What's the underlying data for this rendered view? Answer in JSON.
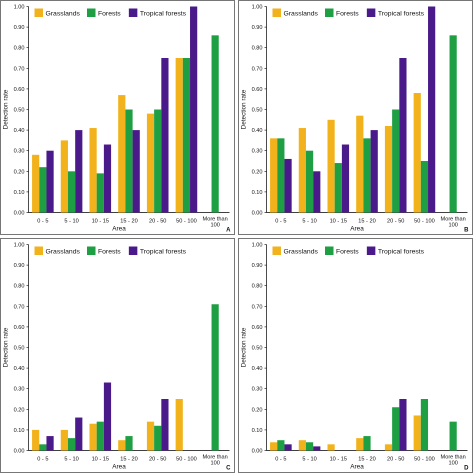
{
  "figure": {
    "colors": {
      "Grasslands": "#f2b21c",
      "Forests": "#1e9f44",
      "Tropical forests": "#4b1a8a"
    }
  },
  "chart_data": [
    {
      "type": "bar",
      "panel_label": "A",
      "categories": [
        "0 - 5",
        "5 - 10",
        "10 - 15",
        "15 - 20",
        "20 - 50",
        "50 - 100",
        "More than 100"
      ],
      "series": [
        {
          "name": "Grasslands",
          "values": [
            0.28,
            0.35,
            0.41,
            0.57,
            0.48,
            0.75,
            null
          ]
        },
        {
          "name": "Forests",
          "values": [
            0.22,
            0.2,
            0.19,
            0.5,
            0.5,
            0.75,
            0.86
          ]
        },
        {
          "name": "Tropical forests",
          "values": [
            0.3,
            0.4,
            0.33,
            0.4,
            0.75,
            1.0,
            null
          ]
        }
      ],
      "xlabel": "Area",
      "ylabel": "Detection rate",
      "ylim": [
        0,
        1
      ],
      "yticks": [
        "0.00",
        "0.10",
        "0.20",
        "0.30",
        "0.40",
        "0.50",
        "0.60",
        "0.70",
        "0.80",
        "0.90",
        "1.00"
      ],
      "legend": "top-left",
      "grid": false
    },
    {
      "type": "bar",
      "panel_label": "B",
      "categories": [
        "0 - 5",
        "5 - 10",
        "10 - 15",
        "15 - 20",
        "20 - 50",
        "50 - 100",
        "More than 100"
      ],
      "series": [
        {
          "name": "Grasslands",
          "values": [
            0.36,
            0.41,
            0.45,
            0.47,
            0.42,
            0.58,
            null
          ]
        },
        {
          "name": "Forests",
          "values": [
            0.36,
            0.3,
            0.24,
            0.36,
            0.5,
            0.25,
            0.86
          ]
        },
        {
          "name": "Tropical forests",
          "values": [
            0.26,
            0.2,
            0.33,
            0.4,
            0.75,
            1.0,
            null
          ]
        }
      ],
      "xlabel": "Area",
      "ylabel": "Detection rate",
      "ylim": [
        0,
        1
      ],
      "yticks": [
        "0.00",
        "0.10",
        "0.20",
        "0.30",
        "0.40",
        "0.50",
        "0.60",
        "0.70",
        "0.80",
        "0.90",
        "1.00"
      ],
      "legend": "top-left",
      "grid": false
    },
    {
      "type": "bar",
      "panel_label": "C",
      "categories": [
        "0 - 5",
        "5 - 10",
        "10 - 15",
        "15 - 20",
        "20 - 50",
        "50 - 100",
        "More than 100"
      ],
      "series": [
        {
          "name": "Grasslands",
          "values": [
            0.1,
            0.1,
            0.13,
            0.05,
            0.14,
            0.25,
            null
          ]
        },
        {
          "name": "Forests",
          "values": [
            0.03,
            0.06,
            0.14,
            0.07,
            0.12,
            null,
            0.71
          ]
        },
        {
          "name": "Tropical forests",
          "values": [
            0.07,
            0.16,
            0.33,
            null,
            0.25,
            null,
            null
          ]
        }
      ],
      "xlabel": "Area",
      "ylabel": "Detection rate",
      "ylim": [
        0,
        1
      ],
      "yticks": [
        "0.00",
        "0.10",
        "0.20",
        "0.30",
        "0.40",
        "0.50",
        "0.60",
        "0.70",
        "0.80",
        "0.90",
        "1.00"
      ],
      "legend": "top-left",
      "grid": false
    },
    {
      "type": "bar",
      "panel_label": "D",
      "categories": [
        "0 - 5",
        "5 - 10",
        "10 - 15",
        "15 - 20",
        "20 - 50",
        "50 - 100",
        "More than 100"
      ],
      "series": [
        {
          "name": "Grasslands",
          "values": [
            0.04,
            0.05,
            0.03,
            0.06,
            0.03,
            0.17,
            null
          ]
        },
        {
          "name": "Forests",
          "values": [
            0.05,
            0.04,
            null,
            0.07,
            0.21,
            0.25,
            0.14
          ]
        },
        {
          "name": "Tropical forests",
          "values": [
            0.03,
            0.02,
            null,
            null,
            0.25,
            null,
            null
          ]
        }
      ],
      "xlabel": "Area",
      "ylabel": "Detection rate",
      "ylim": [
        0,
        1
      ],
      "yticks": [
        "0.00",
        "0.10",
        "0.20",
        "0.30",
        "0.40",
        "0.50",
        "0.60",
        "0.70",
        "0.80",
        "0.90",
        "1.00"
      ],
      "legend": "top-left",
      "grid": false
    }
  ]
}
